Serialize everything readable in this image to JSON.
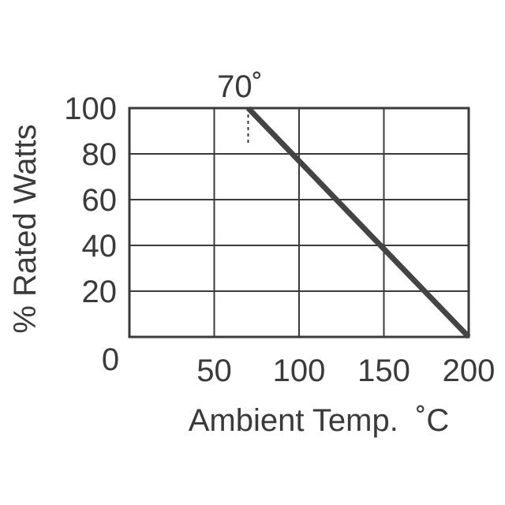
{
  "chart_data": {
    "type": "line",
    "xlabel": "Ambient Temp.  ˚C",
    "ylabel": "% Rated Watts",
    "x_ticks": [
      "50",
      "100",
      "150",
      "200"
    ],
    "y_ticks": [
      "20",
      "40",
      "60",
      "80",
      "100"
    ],
    "origin_label": "0",
    "xlim": [
      0,
      200
    ],
    "ylim": [
      0,
      100
    ],
    "grid": true,
    "series": [
      {
        "x": [
          70,
          200
        ],
        "y": [
          100,
          0
        ]
      }
    ],
    "annotation": {
      "text": "70˚",
      "x": 70
    },
    "colors": {
      "line": "#444444",
      "grid": "#3a3a3a",
      "text": "#3a3a3a"
    }
  }
}
